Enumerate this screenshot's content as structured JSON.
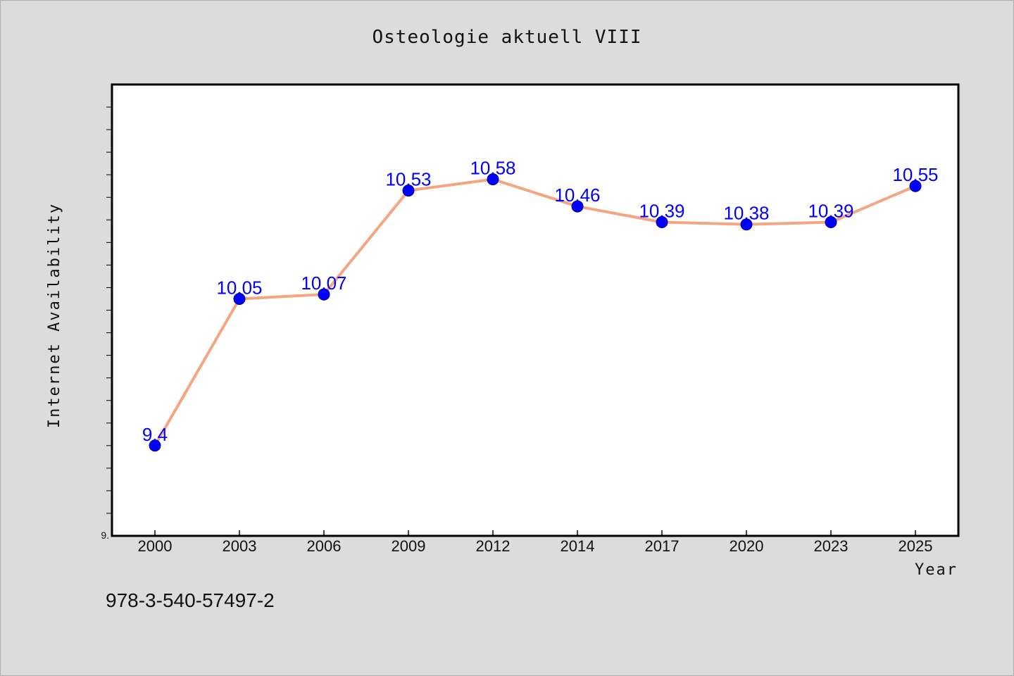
{
  "chart_data": {
    "type": "line",
    "title": "Osteologie aktuell VIII",
    "xlabel": "Year",
    "ylabel": "Internet Availability",
    "categories": [
      "2000",
      "2003",
      "2006",
      "2009",
      "2012",
      "2014",
      "2017",
      "2020",
      "2023",
      "2025"
    ],
    "series": [
      {
        "values": [
          9.4,
          10.05,
          10.07,
          10.53,
          10.58,
          10.46,
          10.39,
          10.38,
          10.39,
          10.55
        ],
        "labels": [
          "9.4",
          "10.05",
          "10.07",
          "10.53",
          "10.58",
          "10.46",
          "10.39",
          "10.38",
          "10.39",
          "10.55"
        ]
      }
    ],
    "ylim": [
      9.0,
      11.0
    ],
    "yticks_shown": [
      "9."
    ],
    "grid": false,
    "line_color": "#f4a582",
    "marker_color": "#0000ff",
    "label_color": "#0000ff"
  },
  "footer": {
    "code": "978-3-540-57497-2"
  },
  "colors": {
    "background": "#dcdcdc",
    "plot_background": "#ffffff"
  }
}
